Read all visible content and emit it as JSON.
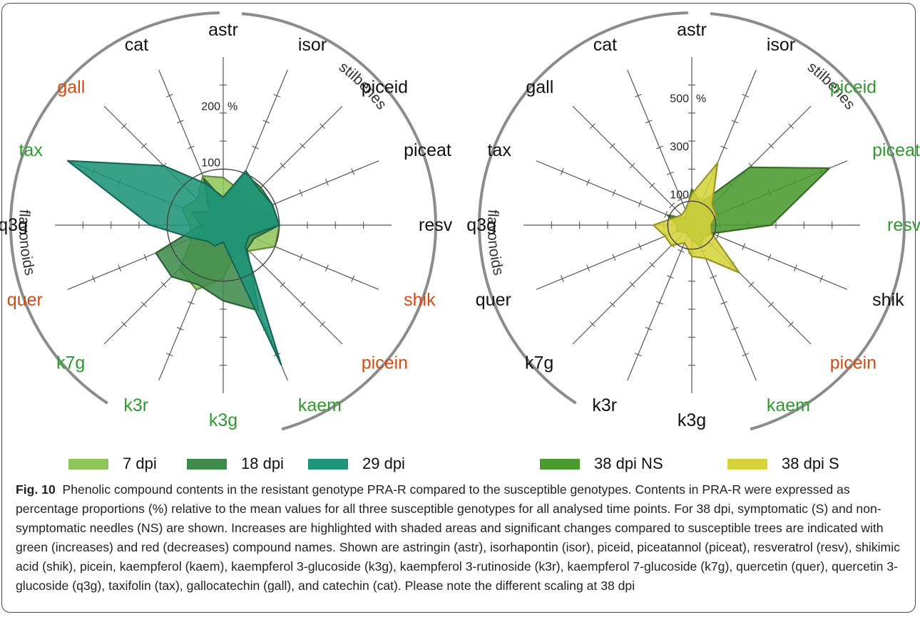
{
  "legend": [
    {
      "label": "7 dpi",
      "color": "#8fc65b"
    },
    {
      "label": "18 dpi",
      "color": "#3f8b4c"
    },
    {
      "label": "29 dpi",
      "color": "#1e9478"
    },
    {
      "label": "38 dpi NS",
      "color": "#4a9a30"
    },
    {
      "label": "38 dpi S",
      "color": "#d6d33a"
    }
  ],
  "caption": {
    "label": "Fig. 10",
    "text": "Phenolic compound contents in the resistant genotype PRA-R compared to the susceptible genotypes. Contents in PRA-R were expressed as percentage proportions (%) relative to the mean values for all three susceptible genotypes for all analysed time points. For 38 dpi, symptomatic (S) and non-symptomatic needles (NS) are shown. Increases are highlighted with shaded areas and significant changes compared to susceptible trees are indicated with green (increases) and red (decreases) compound names. Shown are astringin (astr), isorhapontin (isor), piceid, piceatannol (piceat), resveratrol (resv), shikimic acid (shik), picein, kaempferol (kaem), kaempferol 3-glucoside (k3g), kaempferol 3-rutinoside (k3r), kaempferol 7-glucoside (k7g), quercetin (quer), quercetin 3-glucoside (q3g), taxifolin (tax), gallocatechin (gall), and catechin (cat). Please note the different scaling at 38 dpi"
  },
  "colors": {
    "increase": "#2e9a2e",
    "decrease": "#d34a12",
    "neutral": "#111111"
  },
  "chart_data": [
    {
      "type": "radar",
      "unit": "%",
      "axes": [
        "astr",
        "isor",
        "piceid",
        "piceat",
        "resv",
        "shik",
        "picein",
        "kaem",
        "k3g",
        "k3r",
        "k7g",
        "quer",
        "q3g",
        "tax",
        "gall",
        "cat"
      ],
      "axis_label_colors": [
        "neutral",
        "neutral",
        "neutral",
        "neutral",
        "neutral",
        "decrease",
        "decrease",
        "increase",
        "increase",
        "increase",
        "increase",
        "decrease",
        "neutral",
        "increase",
        "decrease",
        "neutral"
      ],
      "tick_labels": [
        {
          "value": 100,
          "label": "100"
        },
        {
          "value": 200,
          "label": "200"
        }
      ],
      "unit_label": "%",
      "rmax": 300,
      "reference_circle": 100,
      "group_labels": [
        "stilbenes",
        "flavonoids"
      ],
      "series": [
        {
          "name": "7 dpi",
          "color": "#8fc65b",
          "values": [
            85,
            70,
            50,
            72,
            100,
            100,
            65,
            55,
            95,
            125,
            110,
            60,
            60,
            80,
            65,
            95
          ]
        },
        {
          "name": "18 dpi",
          "color": "#3f8b4c",
          "values": [
            45,
            100,
            95,
            95,
            100,
            60,
            60,
            165,
            135,
            115,
            130,
            130,
            40,
            60,
            35,
            90
          ]
        },
        {
          "name": "29 dpi",
          "color": "#1e9478",
          "values": [
            50,
            105,
            90,
            95,
            100,
            50,
            55,
            270,
            30,
            40,
            40,
            60,
            130,
            300,
            150,
            80
          ]
        }
      ]
    },
    {
      "type": "radar",
      "unit": "%",
      "axes": [
        "astr",
        "isor",
        "piceid",
        "piceat",
        "resv",
        "shik",
        "picein",
        "kaem",
        "k3g",
        "k3r",
        "k7g",
        "quer",
        "q3g",
        "tax",
        "gall",
        "cat"
      ],
      "axis_label_colors": [
        "neutral",
        "neutral",
        "increase",
        "increase",
        "increase",
        "neutral",
        "decrease",
        "increase",
        "neutral",
        "neutral",
        "neutral",
        "neutral",
        "neutral",
        "neutral",
        "neutral",
        "neutral"
      ],
      "tick_labels": [
        {
          "value": 100,
          "label": "100"
        },
        {
          "value": 300,
          "label": "300"
        },
        {
          "value": 500,
          "label": "500"
        }
      ],
      "unit_label": "%",
      "rmax": 700,
      "reference_circle": 100,
      "group_labels": [
        "stilbenes",
        "flavonoids"
      ],
      "series": [
        {
          "name": "38 dpi NS",
          "color": "#4a9a30",
          "values": [
            150,
            100,
            340,
            620,
            330,
            90,
            70,
            100,
            60,
            40,
            40,
            70,
            60,
            110,
            40,
            60
          ]
        },
        {
          "name": "38 dpi S",
          "color": "#d6d33a",
          "values": [
            130,
            280,
            120,
            110,
            80,
            90,
            280,
            150,
            130,
            80,
            120,
            120,
            160,
            80,
            60,
            70
          ]
        }
      ]
    }
  ]
}
